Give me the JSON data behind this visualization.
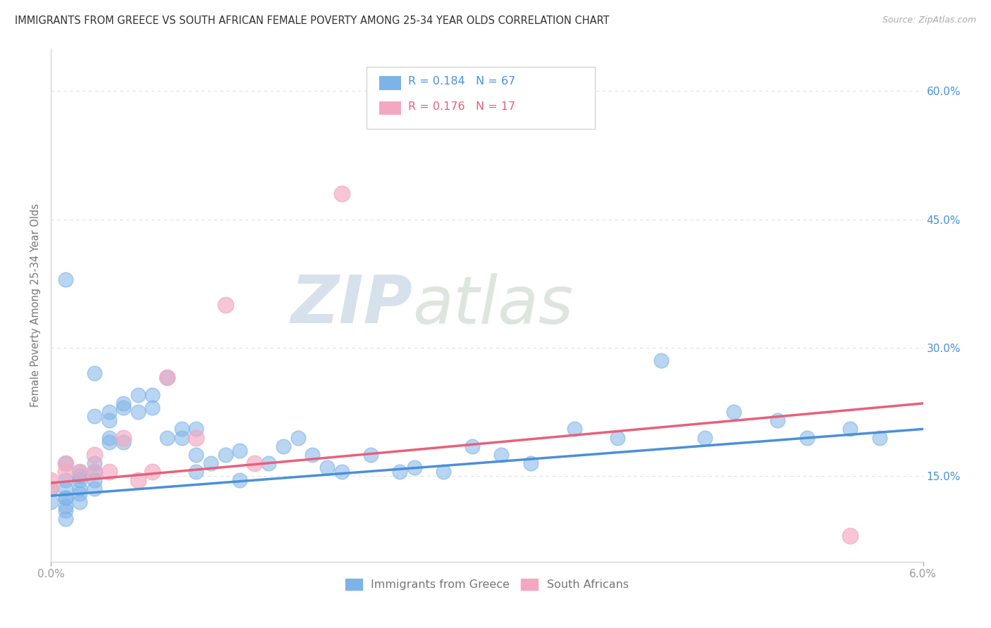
{
  "title": "IMMIGRANTS FROM GREECE VS SOUTH AFRICAN FEMALE POVERTY AMONG 25-34 YEAR OLDS CORRELATION CHART",
  "source": "Source: ZipAtlas.com",
  "ylabel": "Female Poverty Among 25-34 Year Olds",
  "xlim": [
    0.0,
    0.06
  ],
  "ylim": [
    0.05,
    0.65
  ],
  "xtick_positions": [
    0.0,
    0.06
  ],
  "xtick_labels": [
    "0.0%",
    "6.0%"
  ],
  "right_yticks": [
    0.15,
    0.3,
    0.45,
    0.6
  ],
  "right_ytick_labels": [
    "15.0%",
    "30.0%",
    "45.0%",
    "60.0%"
  ],
  "legend_r1": "R = 0.184",
  "legend_n1": "N = 67",
  "legend_r2": "R = 0.176",
  "legend_n2": "N = 17",
  "series1_color": "#7eb3e8",
  "series2_color": "#f4a8c0",
  "trendline1_color": "#4a90d9",
  "trendline2_color": "#e8607a",
  "watermark_zip": "ZIP",
  "watermark_atlas": "atlas",
  "watermark_color_zip": "#c8d8e8",
  "watermark_color_atlas": "#c8d8e8",
  "background_color": "#ffffff",
  "grid_color": "#e0e0e0",
  "title_color": "#333333",
  "axis_label_color": "#777777",
  "tick_label_color": "#999999",
  "series1_x": [
    0.001,
    0.001,
    0.001,
    0.001,
    0.001,
    0.001,
    0.001,
    0.002,
    0.002,
    0.002,
    0.002,
    0.002,
    0.002,
    0.003,
    0.003,
    0.003,
    0.003,
    0.003,
    0.003,
    0.004,
    0.004,
    0.004,
    0.004,
    0.005,
    0.005,
    0.005,
    0.006,
    0.006,
    0.007,
    0.007,
    0.008,
    0.008,
    0.009,
    0.009,
    0.01,
    0.01,
    0.01,
    0.011,
    0.012,
    0.013,
    0.013,
    0.015,
    0.016,
    0.017,
    0.018,
    0.019,
    0.02,
    0.022,
    0.024,
    0.025,
    0.027,
    0.029,
    0.031,
    0.033,
    0.036,
    0.039,
    0.042,
    0.045,
    0.047,
    0.05,
    0.052,
    0.055,
    0.057,
    0.0,
    0.0,
    0.001,
    0.001
  ],
  "series1_y": [
    0.145,
    0.135,
    0.125,
    0.125,
    0.115,
    0.11,
    0.1,
    0.135,
    0.145,
    0.15,
    0.155,
    0.13,
    0.12,
    0.165,
    0.155,
    0.145,
    0.135,
    0.22,
    0.27,
    0.19,
    0.195,
    0.215,
    0.225,
    0.23,
    0.235,
    0.19,
    0.245,
    0.225,
    0.245,
    0.23,
    0.265,
    0.195,
    0.205,
    0.195,
    0.205,
    0.175,
    0.155,
    0.165,
    0.175,
    0.18,
    0.145,
    0.165,
    0.185,
    0.195,
    0.175,
    0.16,
    0.155,
    0.175,
    0.155,
    0.16,
    0.155,
    0.185,
    0.175,
    0.165,
    0.205,
    0.195,
    0.285,
    0.195,
    0.225,
    0.215,
    0.195,
    0.205,
    0.195,
    0.135,
    0.12,
    0.38,
    0.165
  ],
  "series2_x": [
    0.0,
    0.0,
    0.001,
    0.001,
    0.002,
    0.003,
    0.003,
    0.004,
    0.005,
    0.006,
    0.007,
    0.008,
    0.01,
    0.012,
    0.014,
    0.02,
    0.055
  ],
  "series2_y": [
    0.145,
    0.135,
    0.165,
    0.155,
    0.155,
    0.175,
    0.155,
    0.155,
    0.195,
    0.145,
    0.155,
    0.265,
    0.195,
    0.35,
    0.165,
    0.48,
    0.08
  ],
  "trendline1_x0": 0.0,
  "trendline1_y0": 0.127,
  "trendline1_x1": 0.06,
  "trendline1_y1": 0.205,
  "trendline2_x0": 0.0,
  "trendline2_y0": 0.142,
  "trendline2_x1": 0.06,
  "trendline2_y1": 0.235
}
